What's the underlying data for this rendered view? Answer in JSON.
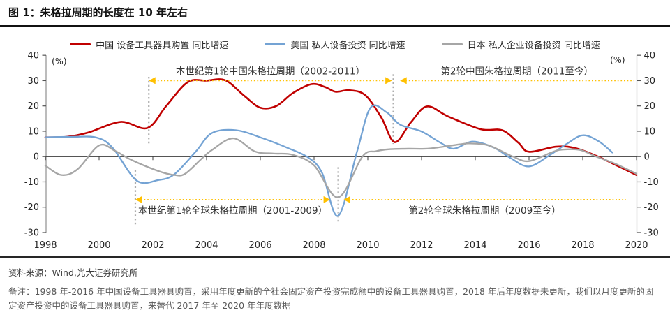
{
  "header": {
    "title": "图 1：朱格拉周期的长度在 10 年左右"
  },
  "chart_data": {
    "type": "line",
    "title": "朱格拉周期的长度在 10 年左右",
    "x_range": [
      1998,
      2020
    ],
    "ylim": [
      -30,
      40
    ],
    "yticks": [
      40,
      30,
      20,
      10,
      0,
      -10,
      -20,
      -30
    ],
    "xticks": [
      1998,
      2000,
      2002,
      2004,
      2006,
      2008,
      2010,
      2012,
      2014,
      2016,
      2018,
      2020
    ],
    "y_unit_left": "(%)",
    "y_unit_right": "(%)",
    "grid": false,
    "legend_position": "top",
    "accent_color": "#FFC000",
    "series": [
      {
        "key": "china",
        "name": "中国 设备工具器具购置 同比增速",
        "color": "#C00000",
        "width": 2.6,
        "points": [
          [
            1998,
            7.6
          ],
          [
            1998.8,
            7.8
          ],
          [
            1999.6,
            9.5
          ],
          [
            2000.8,
            13.7
          ],
          [
            2001.8,
            11.3
          ],
          [
            2002.5,
            20
          ],
          [
            2003.3,
            29.4
          ],
          [
            2004,
            30
          ],
          [
            2004.7,
            30.1
          ],
          [
            2005.4,
            24
          ],
          [
            2006,
            19.3
          ],
          [
            2006.6,
            20
          ],
          [
            2007.2,
            25
          ],
          [
            2007.9,
            28.6
          ],
          [
            2008.4,
            27.5
          ],
          [
            2008.8,
            25.6
          ],
          [
            2009.3,
            26.2
          ],
          [
            2009.9,
            24.3
          ],
          [
            2010.5,
            15.5
          ],
          [
            2011,
            5.7
          ],
          [
            2011.6,
            13.5
          ],
          [
            2012.2,
            19.8
          ],
          [
            2013,
            15.8
          ],
          [
            2014.2,
            10.8
          ],
          [
            2015,
            10.4
          ],
          [
            2015.6,
            5.5
          ],
          [
            2016,
            1.9
          ],
          [
            2017,
            3.9
          ],
          [
            2017.7,
            3.4
          ],
          [
            2018.5,
            0.3
          ],
          [
            2019.3,
            -3.7
          ],
          [
            2020,
            -7.3
          ]
        ]
      },
      {
        "key": "us",
        "name": "美国 私人设备投资 同比增速",
        "color": "#74A3D4",
        "width": 2.3,
        "points": [
          [
            1998,
            7.6
          ],
          [
            1999,
            7.8
          ],
          [
            1999.9,
            7.5
          ],
          [
            2000.5,
            3.5
          ],
          [
            2001.4,
            -9.5
          ],
          [
            2002.2,
            -9.3
          ],
          [
            2002.8,
            -7
          ],
          [
            2003.6,
            2
          ],
          [
            2004.2,
            9.3
          ],
          [
            2005.1,
            10.4
          ],
          [
            2006.1,
            7.2
          ],
          [
            2007,
            3.5
          ],
          [
            2007.8,
            -0.5
          ],
          [
            2008.3,
            -6.5
          ],
          [
            2008.9,
            -23.4
          ],
          [
            2009.6,
            2
          ],
          [
            2010.1,
            19.3
          ],
          [
            2010.7,
            17.5
          ],
          [
            2011.2,
            12.6
          ],
          [
            2012,
            9.9
          ],
          [
            2012.7,
            5.5
          ],
          [
            2013.2,
            3.1
          ],
          [
            2013.9,
            5.9
          ],
          [
            2014.7,
            3.5
          ],
          [
            2015.3,
            -0.5
          ],
          [
            2016,
            -3.9
          ],
          [
            2016.8,
            0.8
          ],
          [
            2017.4,
            5
          ],
          [
            2018,
            8.4
          ],
          [
            2018.6,
            6
          ],
          [
            2019.1,
            1.6
          ]
        ]
      },
      {
        "key": "japan",
        "name": "日本 私人企业设备投资 同比增速",
        "color": "#A6A6A6",
        "width": 2.3,
        "points": [
          [
            1998,
            -3.6
          ],
          [
            1998.6,
            -7.3
          ],
          [
            1999.2,
            -5
          ],
          [
            2000,
            4.4
          ],
          [
            2000.6,
            2.2
          ],
          [
            2001.2,
            -1.3
          ],
          [
            2002.2,
            -5.7
          ],
          [
            2002.8,
            -7.3
          ],
          [
            2003.2,
            -6.8
          ],
          [
            2003.8,
            -1
          ],
          [
            2004.2,
            2.6
          ],
          [
            2005,
            7.2
          ],
          [
            2005.8,
            2
          ],
          [
            2006.5,
            1.2
          ],
          [
            2007.2,
            0.7
          ],
          [
            2008,
            -3.5
          ],
          [
            2008.9,
            -16.1
          ],
          [
            2009.8,
            0
          ],
          [
            2010.3,
            2.1
          ],
          [
            2010.8,
            2.9
          ],
          [
            2011.5,
            3.1
          ],
          [
            2012.3,
            3.2
          ],
          [
            2013.4,
            4.8
          ],
          [
            2013.8,
            5.2
          ],
          [
            2014.5,
            4.4
          ],
          [
            2015.4,
            0
          ],
          [
            2016,
            -1.8
          ],
          [
            2016.9,
            1.9
          ],
          [
            2017.3,
            2.8
          ],
          [
            2017.9,
            2.6
          ],
          [
            2018.5,
            0
          ],
          [
            2019.2,
            -2.8
          ],
          [
            2020,
            -6.8
          ]
        ]
      }
    ],
    "annotations": [
      {
        "label": "本世纪第1轮中国朱格拉周期（2002-2011）",
        "x_from": 2001.85,
        "x_to": 2010.9,
        "y": 30,
        "arrows": "both",
        "label_side": "above"
      },
      {
        "label": "第2轮中国朱格拉周期（2011至今）",
        "x_from": 2011.2,
        "x_to": 2019.9,
        "y": 30,
        "arrows": "left",
        "label_side": "above"
      },
      {
        "label": "本世纪第1轮全球朱格拉周期（2001-2009）",
        "x_from": 2001.35,
        "x_to": 2008.6,
        "y": -17,
        "arrows": "both",
        "label_side": "below"
      },
      {
        "label": "第2轮全球朱格拉周期（2009至今）",
        "x_from": 2009.1,
        "x_to": 2019.6,
        "y": -17,
        "arrows": "left",
        "label_side": "below"
      }
    ],
    "vlines": [
      {
        "x": 2001.85,
        "y_from": 31.5,
        "y_to": 4.3
      },
      {
        "x": 2010.95,
        "y_from": 32.5,
        "y_to": 5.0
      },
      {
        "x": 2001.35,
        "y_from": -5.3,
        "y_to": -27.4
      },
      {
        "x": 2008.9,
        "y_from": -4.2,
        "y_to": -26.3
      }
    ]
  },
  "footer": {
    "source": "资料来源：Wind,光大证券研究所",
    "note": "备注：1998 年-2016 年中国设备工具器具购置，采用年度更新的全社会固定资产投资完成额中的设备工具器具购置，2018 年后年度数据未更新，我们以月度更新的固定资产投资中的设备工具器具购置，来替代 2017 年至 2020 年年度数据"
  }
}
